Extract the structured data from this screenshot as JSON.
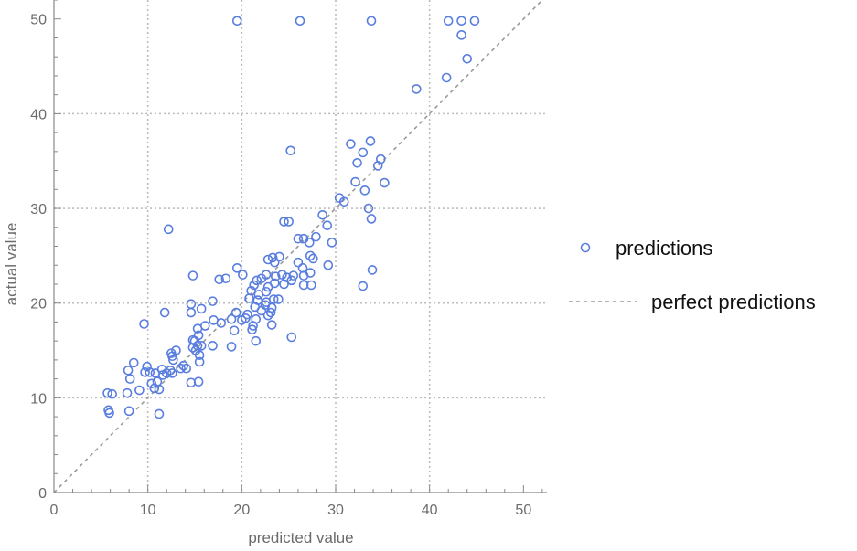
{
  "chart_data": {
    "type": "scatter",
    "xlabel": "predicted value",
    "ylabel": "actual value",
    "xlim": [
      0,
      52.5
    ],
    "ylim": [
      0,
      52
    ],
    "x_ticks": [
      0,
      10,
      20,
      30,
      40,
      50
    ],
    "y_ticks": [
      0,
      10,
      20,
      30,
      40,
      50
    ],
    "x_minor_step": 2,
    "y_minor_step": 2,
    "grid": true,
    "grid_lines": [
      10,
      20,
      30,
      40
    ],
    "legend_position": "right",
    "series": [
      {
        "name": "predictions",
        "marker": "open-circle",
        "color": "#5a7ee0",
        "points": [
          [
            19.5,
            49.8
          ],
          [
            26.2,
            49.8
          ],
          [
            33.8,
            49.8
          ],
          [
            42.0,
            49.8
          ],
          [
            43.4,
            49.8
          ],
          [
            44.8,
            49.8
          ],
          [
            43.4,
            48.3
          ],
          [
            44.0,
            45.8
          ],
          [
            41.8,
            43.8
          ],
          [
            38.6,
            42.6
          ],
          [
            31.6,
            36.8
          ],
          [
            33.7,
            37.1
          ],
          [
            25.2,
            36.1
          ],
          [
            32.9,
            35.9
          ],
          [
            32.3,
            34.8
          ],
          [
            34.8,
            35.2
          ],
          [
            34.5,
            34.5
          ],
          [
            32.1,
            32.8
          ],
          [
            33.1,
            31.9
          ],
          [
            35.2,
            32.7
          ],
          [
            30.4,
            31.1
          ],
          [
            30.9,
            30.7
          ],
          [
            33.5,
            30.0
          ],
          [
            33.8,
            28.9
          ],
          [
            28.6,
            29.3
          ],
          [
            29.1,
            28.2
          ],
          [
            24.5,
            28.6
          ],
          [
            25.0,
            28.6
          ],
          [
            12.2,
            27.8
          ],
          [
            26.0,
            26.8
          ],
          [
            26.6,
            26.8
          ],
          [
            27.9,
            27.0
          ],
          [
            27.2,
            26.4
          ],
          [
            29.6,
            26.4
          ],
          [
            22.8,
            24.6
          ],
          [
            23.3,
            24.8
          ],
          [
            24.0,
            24.9
          ],
          [
            26.0,
            24.3
          ],
          [
            27.3,
            25.0
          ],
          [
            27.6,
            24.7
          ],
          [
            23.5,
            24.3
          ],
          [
            26.5,
            23.7
          ],
          [
            29.2,
            24.0
          ],
          [
            33.9,
            23.5
          ],
          [
            19.5,
            23.7
          ],
          [
            20.1,
            23.0
          ],
          [
            14.8,
            22.9
          ],
          [
            17.6,
            22.5
          ],
          [
            18.3,
            22.6
          ],
          [
            21.6,
            22.4
          ],
          [
            22.1,
            22.6
          ],
          [
            22.6,
            23.0
          ],
          [
            23.6,
            22.8
          ],
          [
            24.3,
            23.0
          ],
          [
            24.8,
            22.7
          ],
          [
            25.5,
            22.9
          ],
          [
            26.6,
            22.9
          ],
          [
            27.3,
            23.2
          ],
          [
            24.5,
            22.0
          ],
          [
            25.3,
            22.4
          ],
          [
            26.6,
            21.9
          ],
          [
            27.4,
            21.9
          ],
          [
            32.9,
            21.8
          ],
          [
            21.3,
            21.9
          ],
          [
            22.8,
            21.7
          ],
          [
            23.5,
            22.1
          ],
          [
            21.0,
            21.3
          ],
          [
            21.8,
            20.9
          ],
          [
            22.6,
            21.2
          ],
          [
            20.8,
            20.5
          ],
          [
            21.7,
            20.3
          ],
          [
            22.6,
            20.1
          ],
          [
            23.4,
            20.4
          ],
          [
            23.9,
            20.4
          ],
          [
            22.5,
            19.8
          ],
          [
            23.2,
            19.5
          ],
          [
            21.4,
            19.6
          ],
          [
            22.1,
            19.2
          ],
          [
            23.1,
            19.0
          ],
          [
            20.6,
            18.8
          ],
          [
            19.4,
            19.0
          ],
          [
            20.4,
            18.4
          ],
          [
            21.5,
            18.3
          ],
          [
            22.8,
            18.7
          ],
          [
            20.0,
            18.2
          ],
          [
            18.9,
            18.3
          ],
          [
            23.2,
            17.7
          ],
          [
            19.2,
            17.1
          ],
          [
            21.1,
            17.2
          ],
          [
            21.2,
            17.6
          ],
          [
            21.5,
            16.0
          ],
          [
            25.3,
            16.4
          ],
          [
            18.9,
            15.4
          ],
          [
            16.9,
            20.2
          ],
          [
            14.6,
            19.9
          ],
          [
            15.7,
            19.4
          ],
          [
            11.8,
            19.0
          ],
          [
            14.6,
            19.0
          ],
          [
            9.6,
            17.8
          ],
          [
            17.8,
            17.9
          ],
          [
            16.1,
            17.6
          ],
          [
            17.0,
            18.2
          ],
          [
            15.3,
            17.3
          ],
          [
            15.4,
            16.6
          ],
          [
            14.8,
            16.1
          ],
          [
            15.0,
            16.0
          ],
          [
            14.8,
            15.3
          ],
          [
            15.3,
            15.5
          ],
          [
            15.7,
            15.5
          ],
          [
            16.9,
            15.5
          ],
          [
            15.1,
            15.0
          ],
          [
            15.5,
            14.5
          ],
          [
            12.5,
            14.7
          ],
          [
            13.0,
            15.0
          ],
          [
            12.6,
            14.4
          ],
          [
            12.7,
            14.0
          ],
          [
            15.5,
            13.8
          ],
          [
            13.8,
            13.4
          ],
          [
            14.1,
            13.1
          ],
          [
            13.5,
            13.1
          ],
          [
            11.5,
            13.0
          ],
          [
            12.4,
            12.9
          ],
          [
            12.6,
            12.6
          ],
          [
            12.0,
            12.6
          ],
          [
            11.6,
            12.4
          ],
          [
            10.2,
            12.7
          ],
          [
            10.8,
            12.6
          ],
          [
            9.7,
            12.7
          ],
          [
            11.0,
            11.7
          ],
          [
            10.4,
            11.5
          ],
          [
            10.7,
            11.0
          ],
          [
            9.9,
            13.3
          ],
          [
            8.5,
            13.7
          ],
          [
            7.9,
            12.9
          ],
          [
            8.1,
            12.0
          ],
          [
            14.6,
            11.6
          ],
          [
            15.4,
            11.7
          ],
          [
            11.2,
            10.9
          ],
          [
            9.1,
            10.8
          ],
          [
            7.8,
            10.5
          ],
          [
            5.7,
            10.5
          ],
          [
            6.2,
            10.4
          ],
          [
            5.8,
            8.7
          ],
          [
            5.9,
            8.4
          ],
          [
            8.0,
            8.6
          ],
          [
            11.2,
            8.3
          ]
        ]
      },
      {
        "name": "perfect predictions",
        "style": "dashed-line",
        "color": "#9a9a9a",
        "x": [
          0,
          52.5
        ],
        "y": [
          0,
          52.5
        ]
      }
    ]
  }
}
